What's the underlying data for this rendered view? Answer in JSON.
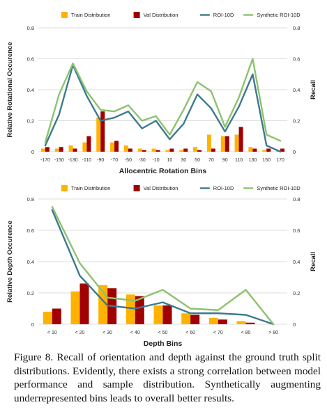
{
  "chart_data": [
    {
      "type": "bar",
      "xlabel": "Allocentric Rotation Bins",
      "ylabel": "Relative Rotational Occurence",
      "y2label": "Recall",
      "ylim": [
        0,
        0.8
      ],
      "y2lim": [
        0,
        0.8
      ],
      "yticks": [
        "0",
        "0.2",
        "0.4",
        "0.6",
        "0.8"
      ],
      "y2ticks": [
        "0",
        "0.2",
        "0.4",
        "0.6",
        "0.8"
      ],
      "grid": true,
      "legend_placement": "top",
      "categories": [
        "-170",
        "-150",
        "-130",
        "-110",
        "-90",
        "-70",
        "-50",
        "-30",
        "-10",
        "10",
        "30",
        "50",
        "70",
        "90",
        "110",
        "130",
        "150",
        "170"
      ],
      "series": [
        {
          "name": "Train Distribution",
          "kind": "bar",
          "color": "#FFB300",
          "values": [
            0.02,
            0.02,
            0.04,
            0.06,
            0.22,
            0.06,
            0.04,
            0.02,
            0.02,
            0.01,
            0.01,
            0.03,
            0.11,
            0.1,
            0.11,
            0.03,
            0.01,
            0.01
          ]
        },
        {
          "name": "Val Distribution",
          "kind": "bar",
          "color": "#A00000",
          "values": [
            0.03,
            0.03,
            0.02,
            0.1,
            0.26,
            0.07,
            0.02,
            0.01,
            0.01,
            0.02,
            0.02,
            0.01,
            0.02,
            0.1,
            0.16,
            0.02,
            0.02,
            0.02
          ]
        },
        {
          "name": "ROI-10D",
          "kind": "line",
          "color": "#3D7A8C",
          "values": [
            0.04,
            0.24,
            0.56,
            0.36,
            0.2,
            0.22,
            0.26,
            0.15,
            0.2,
            0.08,
            0.18,
            0.37,
            0.28,
            0.13,
            0.29,
            0.5,
            0.04,
            0.0
          ]
        },
        {
          "name": "Synthetic ROI-10D",
          "kind": "line",
          "color": "#8DC26F",
          "values": [
            0.06,
            0.37,
            0.57,
            0.39,
            0.27,
            0.26,
            0.3,
            0.2,
            0.23,
            0.11,
            0.27,
            0.45,
            0.39,
            0.16,
            0.35,
            0.6,
            0.11,
            0.07
          ]
        }
      ]
    },
    {
      "type": "bar",
      "xlabel": "Depth Bins",
      "ylabel": "Relative Depth Occurence",
      "y2label": "Recall",
      "ylim": [
        0,
        0.8
      ],
      "y2lim": [
        0,
        0.8
      ],
      "yticks": [
        "0",
        "0.2",
        "0.4",
        "0.6",
        "0.8"
      ],
      "y2ticks": [
        "0",
        "0.2",
        "0.4",
        "0.6",
        "0.8"
      ],
      "grid": true,
      "legend_placement": "top",
      "categories": [
        "< 10",
        "< 20",
        "< 30",
        "< 40",
        "< 50",
        "< 60",
        "< 70",
        "< 80",
        "> 80"
      ],
      "series": [
        {
          "name": "Train Distribution",
          "kind": "bar",
          "color": "#FFB300",
          "values": [
            0.08,
            0.21,
            0.25,
            0.19,
            0.12,
            0.07,
            0.04,
            0.02,
            0.0
          ]
        },
        {
          "name": "Val Distribution",
          "kind": "bar",
          "color": "#A00000",
          "values": [
            0.1,
            0.26,
            0.23,
            0.18,
            0.12,
            0.06,
            0.03,
            0.01,
            0.0
          ]
        },
        {
          "name": "ROI-10D",
          "kind": "line",
          "color": "#3D7A8C",
          "values": [
            0.73,
            0.31,
            0.12,
            0.1,
            0.14,
            0.07,
            0.07,
            0.06,
            0.0
          ]
        },
        {
          "name": "Synthetic ROI-10D",
          "kind": "line",
          "color": "#8DC26F",
          "values": [
            0.75,
            0.39,
            0.17,
            0.15,
            0.22,
            0.1,
            0.09,
            0.22,
            0.0
          ]
        }
      ]
    }
  ],
  "caption": "Figure 8. Recall of orientation and depth against the ground truth split distributions. Evidently, there exists a strong correlation between model performance and sample distribution. Synthetically augmenting underrepresented bins leads to overall better results."
}
